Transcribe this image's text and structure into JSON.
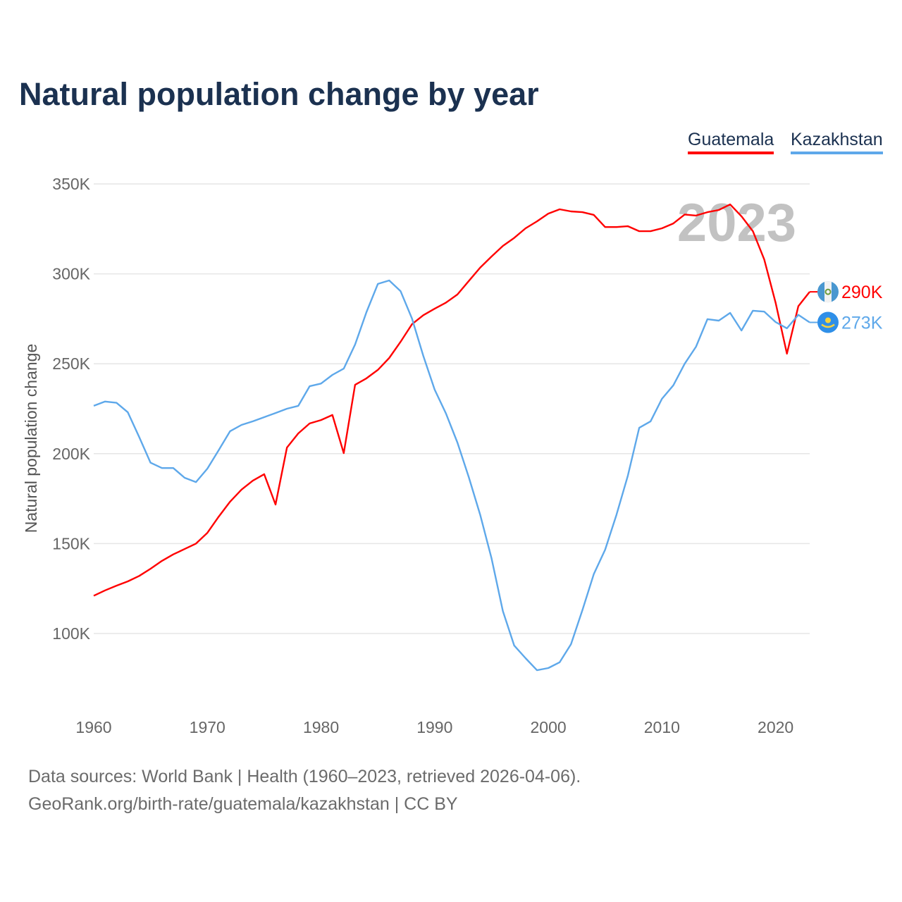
{
  "title": "Natural population change by year",
  "year_watermark": "2023",
  "footer": {
    "line1": "Data sources: World Bank | Health (1960–2023, retrieved 2026-04-06).",
    "line2": "GeoRank.org/birth-rate/guatemala/kazakhstan | CC BY"
  },
  "chart_data": {
    "type": "line",
    "title": "Natural population change by year",
    "xlabel": "",
    "ylabel": "Natural population change",
    "xlim": [
      1960,
      2023
    ],
    "ylim": [
      55000,
      350000
    ],
    "x_ticks": [
      1960,
      1970,
      1980,
      1990,
      2000,
      2010,
      2020
    ],
    "x_tick_labels": [
      "1960",
      "1970",
      "1980",
      "1990",
      "2000",
      "2010",
      "2020"
    ],
    "y_ticks": [
      100000,
      150000,
      200000,
      250000,
      300000,
      350000
    ],
    "y_tick_labels": [
      "100K",
      "150K",
      "200K",
      "250K",
      "300K",
      "350K"
    ],
    "grid": true,
    "legend_position": "top-right",
    "x": [
      1960,
      1961,
      1962,
      1963,
      1964,
      1965,
      1966,
      1967,
      1968,
      1969,
      1970,
      1971,
      1972,
      1973,
      1974,
      1975,
      1976,
      1977,
      1978,
      1979,
      1980,
      1981,
      1982,
      1983,
      1984,
      1985,
      1986,
      1987,
      1988,
      1989,
      1990,
      1991,
      1992,
      1993,
      1994,
      1995,
      1996,
      1997,
      1998,
      1999,
      2000,
      2001,
      2002,
      2003,
      2004,
      2005,
      2006,
      2007,
      2008,
      2009,
      2010,
      2011,
      2012,
      2013,
      2014,
      2015,
      2016,
      2017,
      2018,
      2019,
      2020,
      2021,
      2022,
      2023
    ],
    "series": [
      {
        "name": "Guatemala",
        "color": "#ff0000",
        "end_label": "290K",
        "values": [
          121000,
          124000,
          126600,
          129000,
          132000,
          136000,
          140400,
          144000,
          147000,
          150000,
          156000,
          165000,
          173300,
          180000,
          185000,
          188600,
          171700,
          203400,
          211300,
          216800,
          218700,
          221500,
          200300,
          238300,
          241900,
          246600,
          253200,
          262200,
          272000,
          277000,
          280600,
          284000,
          288500,
          296000,
          303400,
          309600,
          315500,
          320000,
          325300,
          329200,
          333500,
          335900,
          334700,
          334300,
          332800,
          326000,
          326000,
          326500,
          323700,
          323700,
          325300,
          328000,
          333000,
          332400,
          334300,
          335500,
          338600,
          332000,
          323700,
          308000,
          284000,
          255600,
          282000,
          290000
        ]
      },
      {
        "name": "Kazakhstan",
        "color": "#5ea8ea",
        "end_label": "273K",
        "values": [
          226600,
          229000,
          228300,
          223000,
          209300,
          195000,
          192000,
          192000,
          186600,
          184200,
          191700,
          202000,
          212500,
          216000,
          218000,
          220300,
          222600,
          225000,
          226600,
          237500,
          239000,
          243800,
          247300,
          260700,
          278700,
          294400,
          296300,
          290400,
          275200,
          254400,
          235600,
          222300,
          206200,
          187000,
          166200,
          142000,
          112500,
          93300,
          86300,
          79600,
          80800,
          84000,
          94100,
          113000,
          133000,
          146600,
          166000,
          187800,
          214400,
          218000,
          230500,
          238000,
          250000,
          259500,
          274800,
          274000,
          278300,
          268500,
          279500,
          279000,
          273200,
          269700,
          277200,
          273000
        ]
      }
    ]
  }
}
